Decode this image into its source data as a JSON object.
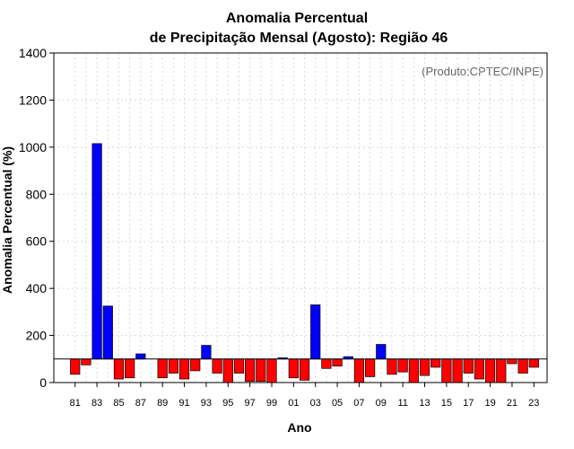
{
  "chart_data": {
    "type": "bar",
    "title": [
      "Anomalia Percentual",
      "de Precipitação Mensal (Agosto): Região 46"
    ],
    "xlabel": "Ano",
    "ylabel": "Anomalia Percentual (%)",
    "credit": "(Produto:CPTEC/INPE)",
    "ylim": [
      0,
      1400
    ],
    "yticks": [
      "0",
      "200",
      "400",
      "600",
      "800",
      "1000",
      "1200",
      "1400"
    ],
    "reference_value": 100,
    "grid": true,
    "colors": {
      "above": "#0000ff",
      "below": "#ff0000",
      "reference": "#000000",
      "grid": "#d9d9d9"
    },
    "xtick_labels": [
      "81",
      "83",
      "85",
      "87",
      "89",
      "91",
      "93",
      "95",
      "97",
      "99",
      "01",
      "03",
      "05",
      "07",
      "09",
      "11",
      "13",
      "15",
      "17",
      "19",
      "21",
      "23"
    ],
    "categories": [
      "1981",
      "1982",
      "1983",
      "1984",
      "1985",
      "1986",
      "1987",
      "1988",
      "1989",
      "1990",
      "1991",
      "1992",
      "1993",
      "1994",
      "1995",
      "1996",
      "1997",
      "1998",
      "1999",
      "2000",
      "2001",
      "2002",
      "2003",
      "2004",
      "2005",
      "2006",
      "2007",
      "2008",
      "2009",
      "2010",
      "2011",
      "2012",
      "2013",
      "2014",
      "2015",
      "2016",
      "2017",
      "2018",
      "2019",
      "2020",
      "2021",
      "2022",
      "2023"
    ],
    "values": [
      35,
      75,
      1015,
      325,
      15,
      20,
      122,
      100,
      20,
      40,
      15,
      50,
      158,
      40,
      0,
      40,
      5,
      5,
      0,
      105,
      20,
      10,
      330,
      60,
      70,
      110,
      0,
      25,
      162,
      35,
      45,
      0,
      30,
      65,
      0,
      0,
      40,
      15,
      0,
      0,
      80,
      40,
      65
    ]
  }
}
